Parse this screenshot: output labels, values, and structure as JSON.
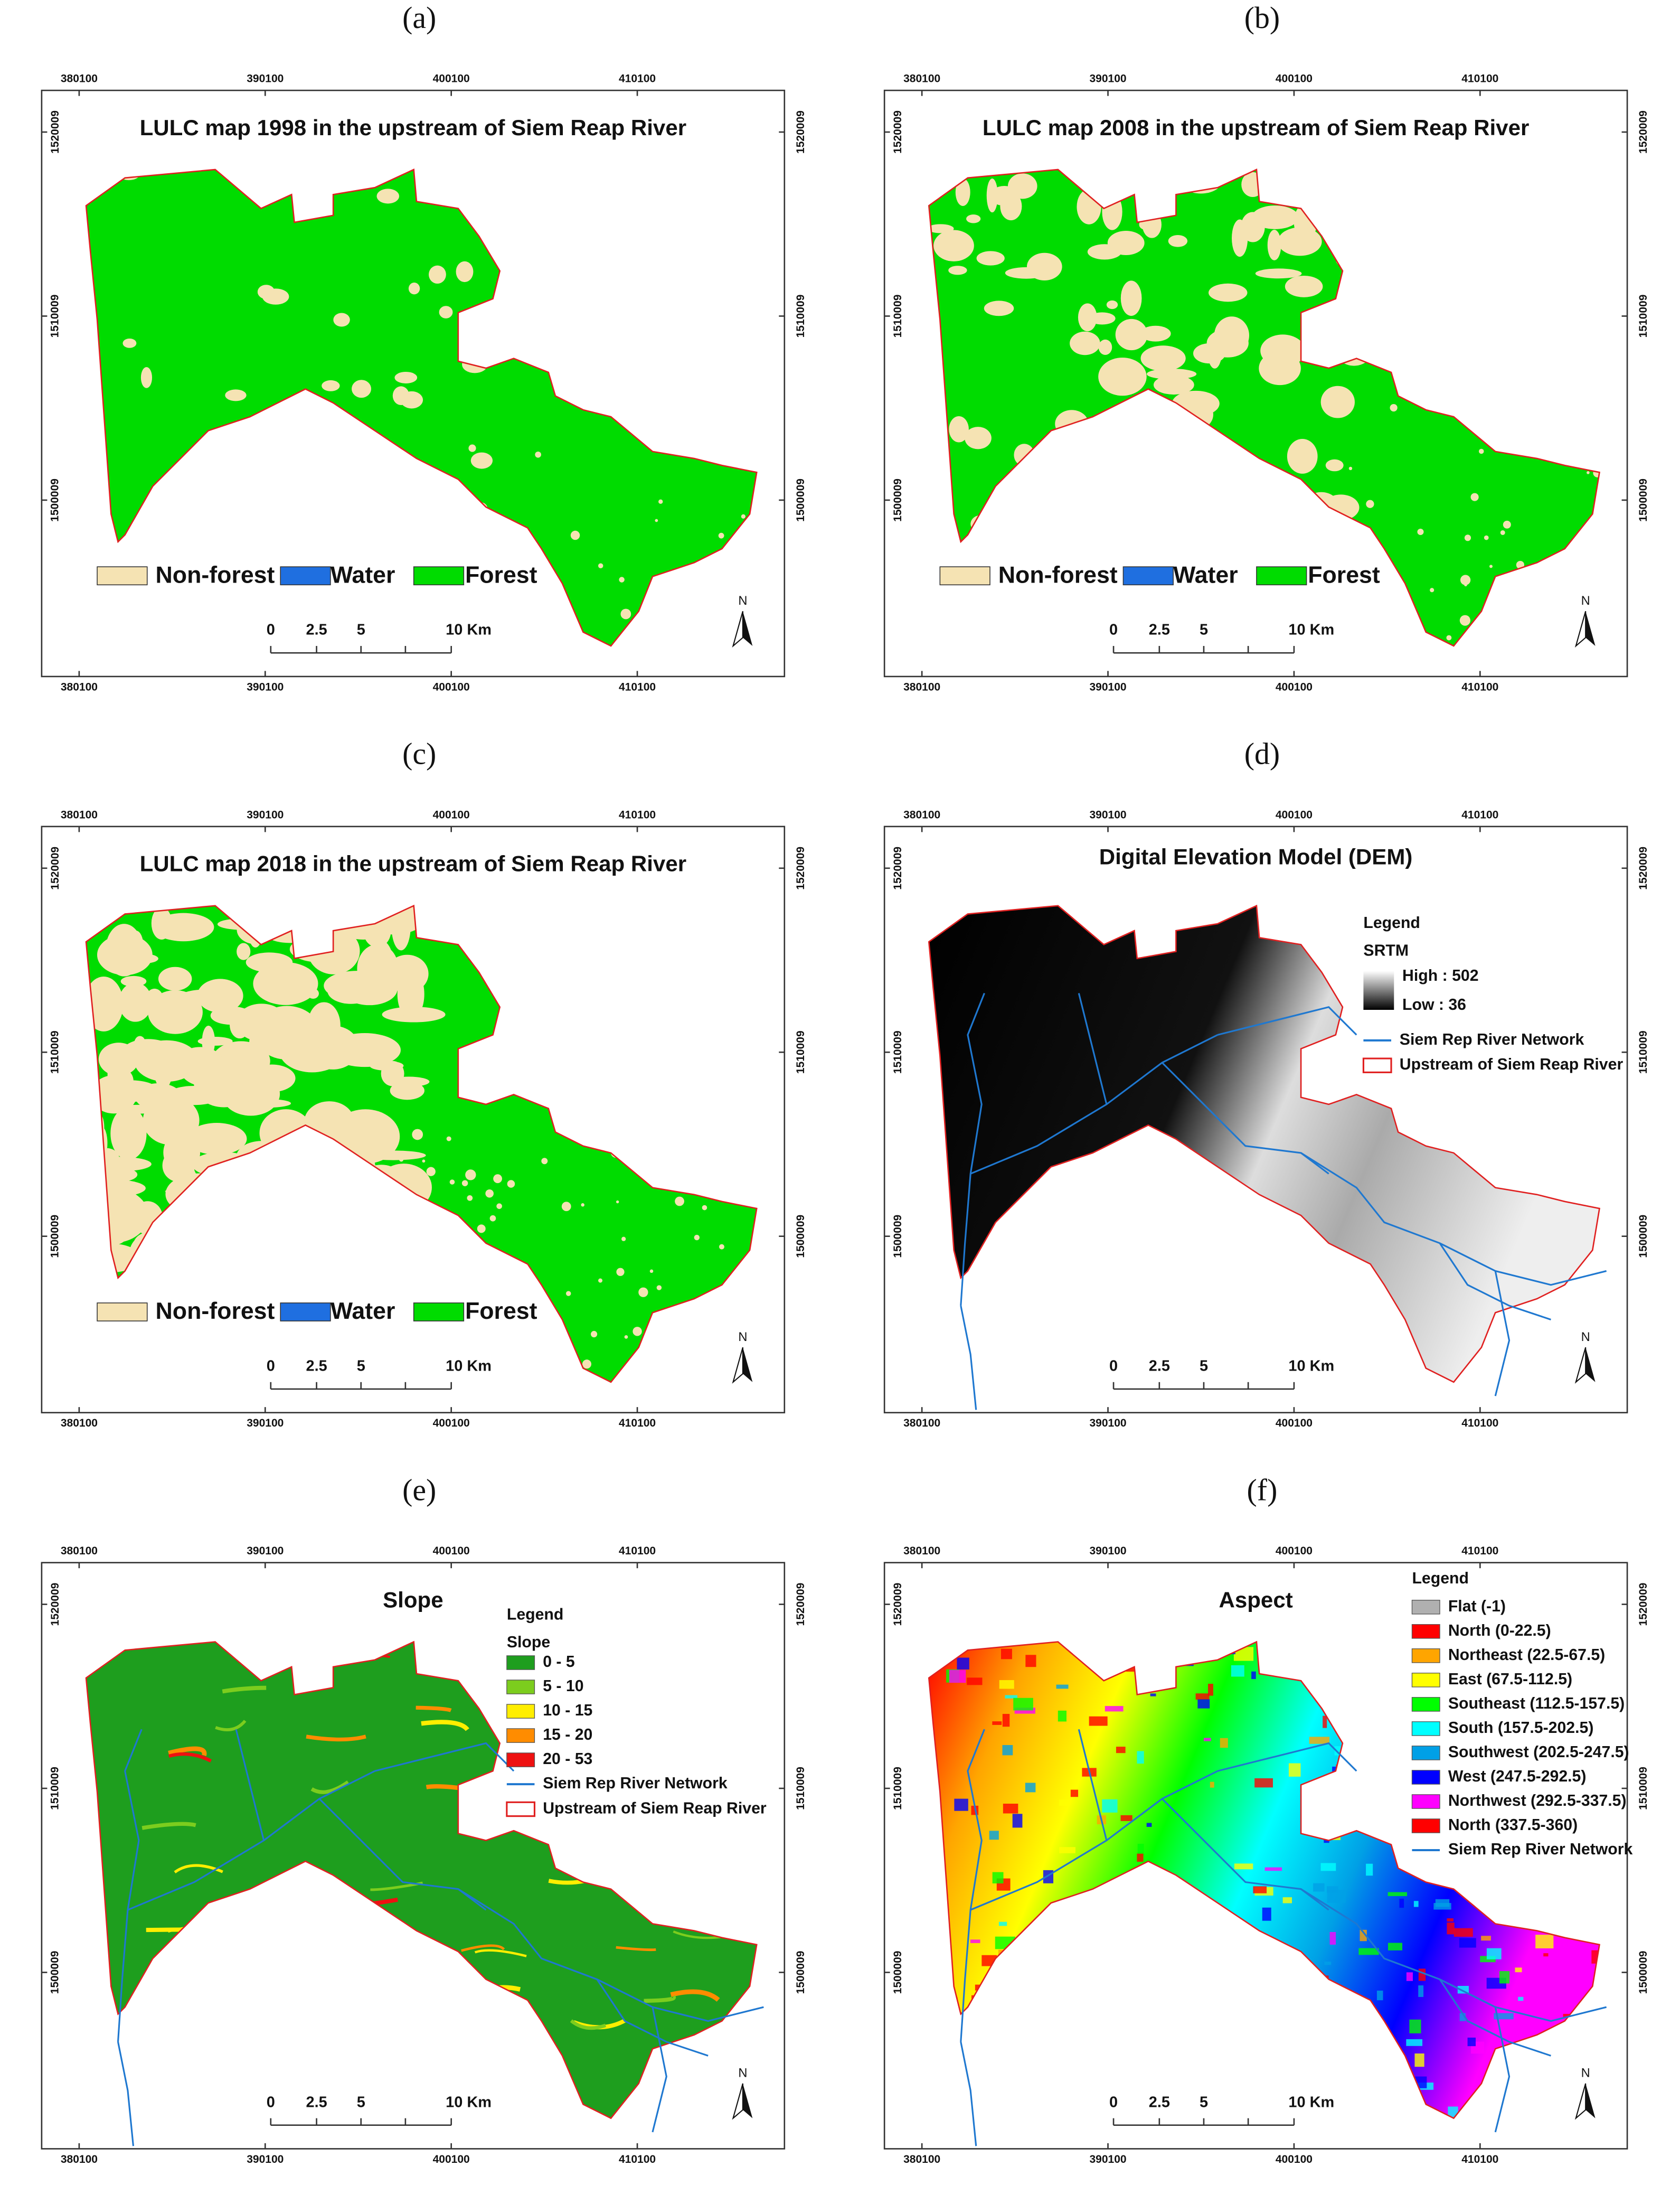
{
  "panels": [
    {
      "label": "(a)",
      "title": "LULC map 1998 in the upstream of Siem Reap River",
      "kind": "lulc",
      "legend": {
        "items": [
          {
            "label": "Non-forest",
            "color": "#f5e3b3"
          },
          {
            "label": "Water",
            "color": "#1f6fe0"
          },
          {
            "label": "Forest",
            "color": "#00dc00"
          }
        ]
      }
    },
    {
      "label": "(b)",
      "title": "LULC map 2008 in the upstream of Siem Reap River",
      "kind": "lulc",
      "legend": {
        "items": [
          {
            "label": "Non-forest",
            "color": "#f5e3b3"
          },
          {
            "label": "Water",
            "color": "#1f6fe0"
          },
          {
            "label": "Forest",
            "color": "#00dc00"
          }
        ]
      }
    },
    {
      "label": "(c)",
      "title": "LULC map 2018 in the upstream of Siem Reap River",
      "kind": "lulc",
      "legend": {
        "items": [
          {
            "label": "Non-forest",
            "color": "#f5e3b3"
          },
          {
            "label": "Water",
            "color": "#1f6fe0"
          },
          {
            "label": "Forest",
            "color": "#00dc00"
          }
        ]
      }
    },
    {
      "label": "(d)",
      "title": "Digital Elevation Model (DEM)",
      "kind": "dem",
      "legend": {
        "title": "Legend",
        "subtitle": "SRTM",
        "high": "High : 502",
        "low": "Low : 36",
        "items": [
          {
            "label": "Siem Rep River Network",
            "color": "#1f78d0"
          },
          {
            "label": "Upstream of Siem Reap River",
            "color": "#e02020"
          }
        ]
      }
    },
    {
      "label": "(e)",
      "title": "Slope",
      "kind": "slope",
      "legend": {
        "title": "Legend",
        "subtitle": "Slope",
        "classes": [
          {
            "label": "0 - 5",
            "color": "#1e9e1e"
          },
          {
            "label": "5 - 10",
            "color": "#7ccd1e"
          },
          {
            "label": "10 - 15",
            "color": "#ffee00"
          },
          {
            "label": "15 - 20",
            "color": "#ff8c00"
          },
          {
            "label": "20 - 53",
            "color": "#ee1111"
          }
        ],
        "items": [
          {
            "label": "Siem Rep River Network",
            "color": "#1f78d0"
          },
          {
            "label": "Upstream of Siem Reap River",
            "color": "#e02020"
          }
        ]
      }
    },
    {
      "label": "(f)",
      "title": "Aspect",
      "kind": "aspect",
      "legend": {
        "title": "Legend",
        "classes": [
          {
            "label": "Flat (-1)",
            "color": "#b0b0b0"
          },
          {
            "label": "North (0-22.5)",
            "color": "#ff0000"
          },
          {
            "label": "Northeast (22.5-67.5)",
            "color": "#ffa500"
          },
          {
            "label": "East (67.5-112.5)",
            "color": "#ffff00"
          },
          {
            "label": "Southeast (112.5-157.5)",
            "color": "#00ff00"
          },
          {
            "label": "South (157.5-202.5)",
            "color": "#00ffff"
          },
          {
            "label": "Southwest (202.5-247.5)",
            "color": "#00a0e6"
          },
          {
            "label": "West (247.5-292.5)",
            "color": "#0000ff"
          },
          {
            "label": "Northwest (292.5-337.5)",
            "color": "#ff00ff"
          },
          {
            "label": "North (337.5-360)",
            "color": "#ff0000"
          }
        ],
        "items": [
          {
            "label": "Siem Rep River Network",
            "color": "#1f78d0"
          }
        ]
      }
    }
  ],
  "axes": {
    "x_ticks": [
      380100,
      390100,
      400100,
      410100
    ],
    "y_ticks": [
      1500009,
      1510009,
      1520009
    ]
  },
  "scale_bar": [
    "0",
    "2.5",
    "5",
    "10 Km"
  ],
  "north": "N"
}
